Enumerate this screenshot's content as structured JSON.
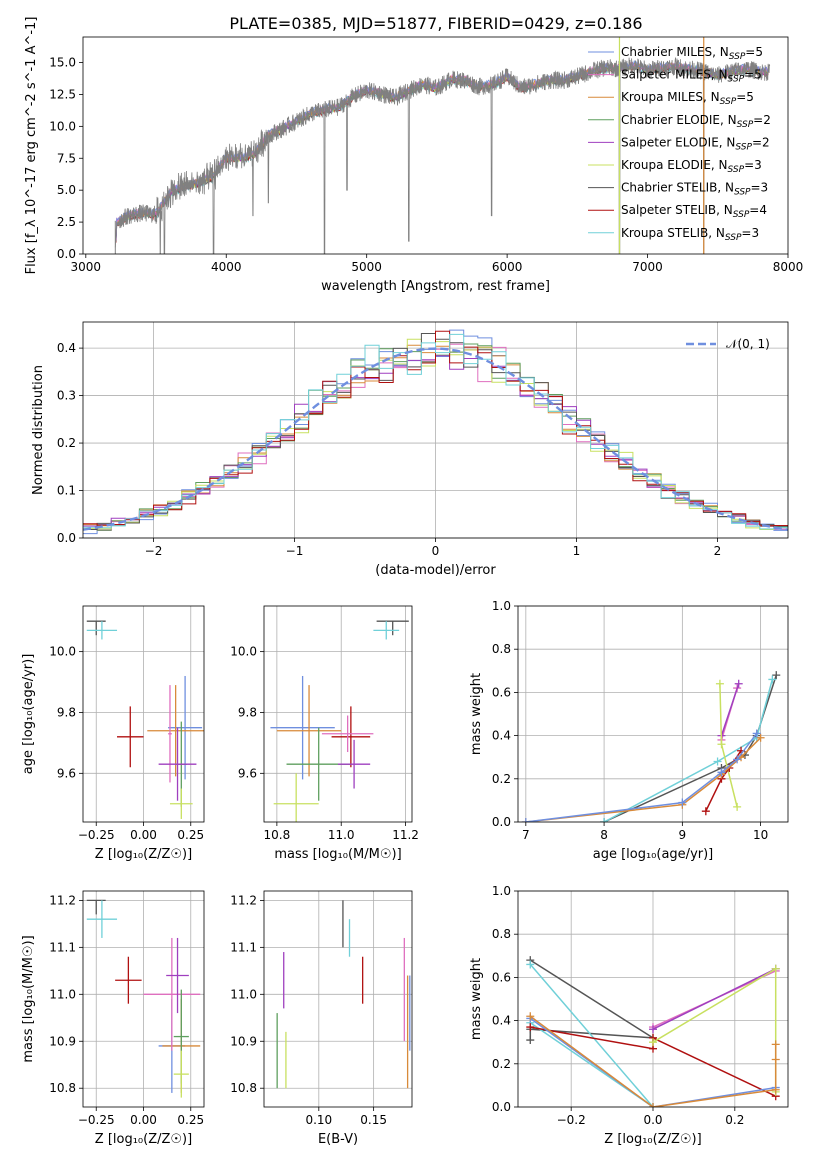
{
  "figure": {
    "title": "PLATE=0385, MJD=51877, FIBERID=0429, z=0.186"
  },
  "colors": {
    "chabrier_miles": "#6f8fdf",
    "salpeter_miles": "#df6fbf",
    "kroupa_miles": "#d88a3a",
    "chabrier_elodie": "#5f9f5f",
    "salpeter_elodie": "#9f3fbf",
    "kroupa_elodie": "#c8e060",
    "chabrier_stelib": "#555555",
    "salpeter_stelib": "#b01010",
    "kroupa_stelib": "#70d0d8",
    "normal_curve": "#6f8fdf",
    "grid": "#b0b0b0",
    "spectrum": "#808080"
  },
  "chart_data": [
    {
      "id": "spectrum",
      "type": "line",
      "xlabel": "wavelength [Angstrom, rest frame]",
      "ylabel": "Flux [f_λ 10^-17 erg cm^-2 s^-1 A^-1]",
      "xlim": [
        2980,
        8000
      ],
      "ylim": [
        0,
        17
      ],
      "xticks": [
        "3000",
        "4000",
        "5000",
        "6000",
        "7000",
        "8000"
      ],
      "yticks": [
        "0.0",
        "2.5",
        "5.0",
        "7.5",
        "10.0",
        "12.5",
        "15.0"
      ],
      "grid": false,
      "legend_position": "top-right",
      "legend": [
        {
          "main": "Chabrier MILES, N",
          "sub": "SSP",
          "tail": "=5",
          "color_key": "chabrier_miles"
        },
        {
          "main": "Salpeter MILES, N",
          "sub": "SSP",
          "tail": "=5",
          "color_key": "salpeter_miles"
        },
        {
          "main": "Kroupa MILES, N",
          "sub": "SSP",
          "tail": "=5",
          "color_key": "kroupa_miles"
        },
        {
          "main": "Chabrier ELODIE, N",
          "sub": "SSP",
          "tail": "=2",
          "color_key": "chabrier_elodie"
        },
        {
          "main": "Salpeter ELODIE, N",
          "sub": "SSP",
          "tail": "=2",
          "color_key": "salpeter_elodie"
        },
        {
          "main": "Kroupa ELODIE, N",
          "sub": "SSP",
          "tail": "=3",
          "color_key": "kroupa_elodie"
        },
        {
          "main": "Chabrier STELIB, N",
          "sub": "SSP",
          "tail": "=3",
          "color_key": "chabrier_stelib"
        },
        {
          "main": "Salpeter STELIB, N",
          "sub": "SSP",
          "tail": "=4",
          "color_key": "salpeter_stelib"
        },
        {
          "main": "Kroupa STELIB, N",
          "sub": "SSP",
          "tail": "=3",
          "color_key": "kroupa_stelib"
        }
      ],
      "envelope": [
        [
          3210,
          0
        ],
        [
          3220,
          2.5
        ],
        [
          3300,
          3.0
        ],
        [
          3400,
          3.2
        ],
        [
          3500,
          3.1
        ],
        [
          3600,
          4.8
        ],
        [
          3700,
          5.3
        ],
        [
          3800,
          5.6
        ],
        [
          3900,
          6.0
        ],
        [
          4000,
          7.5
        ],
        [
          4100,
          7.5
        ],
        [
          4200,
          7.8
        ],
        [
          4300,
          9.3
        ],
        [
          4400,
          9.8
        ],
        [
          4500,
          10.4
        ],
        [
          4600,
          11.0
        ],
        [
          4700,
          11.3
        ],
        [
          4800,
          11.5
        ],
        [
          4900,
          12.3
        ],
        [
          5000,
          12.8
        ],
        [
          5100,
          12.6
        ],
        [
          5200,
          12.2
        ],
        [
          5300,
          12.8
        ],
        [
          5400,
          13.3
        ],
        [
          5500,
          13.0
        ],
        [
          5600,
          13.7
        ],
        [
          5700,
          13.6
        ],
        [
          5800,
          13.1
        ],
        [
          5900,
          13.3
        ],
        [
          6000,
          13.9
        ],
        [
          6100,
          13.0
        ],
        [
          6200,
          13.3
        ],
        [
          6300,
          13.6
        ],
        [
          6400,
          13.6
        ],
        [
          6500,
          13.9
        ],
        [
          6600,
          14.3
        ],
        [
          6700,
          14.6
        ],
        [
          6800,
          14.5
        ],
        [
          6900,
          14.8
        ],
        [
          7000,
          14.4
        ],
        [
          7100,
          14.6
        ],
        [
          7200,
          14.7
        ],
        [
          7300,
          14.5
        ],
        [
          7400,
          14.3
        ],
        [
          7500,
          14.0
        ],
        [
          7600,
          14.3
        ],
        [
          7700,
          14.5
        ],
        [
          7800,
          14.3
        ],
        [
          7870,
          14.2
        ]
      ],
      "absorption_spikes": [
        [
          3530,
          0
        ],
        [
          3560,
          0
        ],
        [
          3910,
          0
        ],
        [
          4700,
          0
        ],
        [
          5300,
          1
        ],
        [
          4190,
          3
        ],
        [
          4300,
          4
        ],
        [
          4860,
          5
        ],
        [
          5890,
          3
        ],
        [
          6800,
          0
        ],
        [
          7400,
          0
        ]
      ]
    },
    {
      "id": "residuals",
      "type": "step",
      "xlabel": "(data-model)/error",
      "ylabel": "Normed distribution",
      "xlim": [
        -2.5,
        2.5
      ],
      "ylim": [
        0,
        0.455
      ],
      "xticks": [
        "−2",
        "−1",
        "0",
        "1",
        "2"
      ],
      "yticks": [
        "0.0",
        "0.1",
        "0.2",
        "0.3",
        "0.4"
      ],
      "grid": true,
      "legend_position": "top-right",
      "legend_label": "𝒩(0, 1)",
      "bin_width": 0.1,
      "normal_mean": 0,
      "normal_sigma": 1
    },
    {
      "id": "age_vs_z",
      "type": "scatter",
      "xlabel": "Z [log₁₀(Z/Z☉)]",
      "ylabel": "age  [log₁₀(age/yr)]",
      "xlim": [
        -0.32,
        0.32
      ],
      "ylim": [
        9.44,
        10.15
      ],
      "xticks": [
        "−0.25",
        "0.00",
        "0.25"
      ],
      "yticks": [
        "9.6",
        "9.8",
        "10.0"
      ],
      "grid": true,
      "points": [
        {
          "c": "chabrier_stelib",
          "x": -0.25,
          "xe": 0.05,
          "y": 10.1,
          "ye": 0
        },
        {
          "c": "kroupa_stelib",
          "x": -0.22,
          "xe": 0.08,
          "y": 10.07,
          "ye": 0.03
        },
        {
          "c": "salpeter_stelib",
          "x": -0.07,
          "xe": 0.07,
          "y": 9.72,
          "ye": 0.1
        },
        {
          "c": "chabrier_miles",
          "x": 0.22,
          "xe": 0.09,
          "y": 9.75,
          "ye": 0.17
        },
        {
          "c": "kroupa_miles",
          "x": 0.17,
          "xe": 0.15,
          "y": 9.74,
          "ye": 0.15
        },
        {
          "c": "salpeter_miles",
          "x": 0.14,
          "xe": 0.01,
          "y": 9.73,
          "ye": 0.16
        },
        {
          "c": "chabrier_elodie",
          "x": 0.2,
          "xe": 0.03,
          "y": 9.63,
          "ye": 0.14
        },
        {
          "c": "salpeter_elodie",
          "x": 0.18,
          "xe": 0.1,
          "y": 9.63,
          "ye": 0.12
        },
        {
          "c": "kroupa_elodie",
          "x": 0.2,
          "xe": 0.06,
          "y": 9.5,
          "ye": 0.05
        }
      ]
    },
    {
      "id": "age_vs_mass",
      "type": "scatter",
      "xlabel": "mass [log₁₀(M/M☉)]",
      "ylabel": "",
      "xlim": [
        10.76,
        11.22
      ],
      "ylim": [
        9.44,
        10.15
      ],
      "xticks": [
        "10.8",
        "11.0",
        "11.2"
      ],
      "yticks": [
        "9.6",
        "9.8",
        "10.0"
      ],
      "grid": true,
      "points": [
        {
          "c": "chabrier_stelib",
          "x": 11.16,
          "xe": 0.05,
          "y": 10.1,
          "ye": 0
        },
        {
          "c": "kroupa_stelib",
          "x": 11.14,
          "xe": 0.04,
          "y": 10.07,
          "ye": 0.03
        },
        {
          "c": "salpeter_stelib",
          "x": 11.03,
          "xe": 0.06,
          "y": 9.72,
          "ye": 0.1
        },
        {
          "c": "chabrier_miles",
          "x": 10.88,
          "xe": 0.1,
          "y": 9.75,
          "ye": 0.17
        },
        {
          "c": "kroupa_miles",
          "x": 10.9,
          "xe": 0.1,
          "y": 9.74,
          "ye": 0.15
        },
        {
          "c": "salpeter_miles",
          "x": 11.02,
          "xe": 0.08,
          "y": 9.73,
          "ye": 0.06
        },
        {
          "c": "chabrier_elodie",
          "x": 10.93,
          "xe": 0.1,
          "y": 9.63,
          "ye": 0.12
        },
        {
          "c": "salpeter_elodie",
          "x": 11.04,
          "xe": 0.05,
          "y": 9.63,
          "ye": 0.08
        },
        {
          "c": "kroupa_elodie",
          "x": 10.86,
          "xe": 0.07,
          "y": 9.5,
          "ye": 0.1
        }
      ]
    },
    {
      "id": "mass_weight_vs_age",
      "type": "line",
      "xlabel": "age  [log₁₀(age/yr)]",
      "ylabel": "mass weight",
      "xlim": [
        6.9,
        10.35
      ],
      "ylim": [
        0,
        1
      ],
      "xticks": [
        "7",
        "8",
        "9",
        "10"
      ],
      "yticks": [
        "0.0",
        "0.2",
        "0.4",
        "0.6",
        "0.8",
        "1.0"
      ],
      "grid": true,
      "series": [
        {
          "c": "chabrier_stelib",
          "points": [
            [
              8.0,
              0.0
            ],
            [
              9.5,
              0.25
            ],
            [
              9.8,
              0.31
            ],
            [
              9.95,
              0.4
            ],
            [
              10.2,
              0.68
            ]
          ]
        },
        {
          "c": "kroupa_stelib",
          "points": [
            [
              8.0,
              0.0
            ],
            [
              9.45,
              0.28
            ],
            [
              9.95,
              0.39
            ],
            [
              10.15,
              0.66
            ]
          ]
        },
        {
          "c": "salpeter_miles",
          "points": [
            [
              9.5,
              0.38
            ],
            [
              9.7,
              0.62
            ]
          ]
        },
        {
          "c": "salpeter_elodie",
          "points": [
            [
              9.5,
              0.4
            ],
            [
              9.72,
              0.64
            ]
          ]
        },
        {
          "c": "kroupa_elodie",
          "points": [
            [
              9.48,
              0.64
            ],
            [
              9.5,
              0.36
            ],
            [
              9.7,
              0.07
            ]
          ]
        },
        {
          "c": "salpeter_stelib",
          "points": [
            [
              9.3,
              0.05
            ],
            [
              9.5,
              0.2
            ],
            [
              9.6,
              0.25
            ],
            [
              9.75,
              0.33
            ]
          ]
        },
        {
          "c": "kroupa_miles",
          "points": [
            [
              7.0,
              0.0
            ],
            [
              9.0,
              0.08
            ],
            [
              9.5,
              0.22
            ],
            [
              9.75,
              0.3
            ],
            [
              10.0,
              0.39
            ]
          ]
        },
        {
          "c": "chabrier_miles",
          "points": [
            [
              7.0,
              0.0
            ],
            [
              9.0,
              0.09
            ],
            [
              9.5,
              0.23
            ],
            [
              9.7,
              0.29
            ],
            [
              9.95,
              0.41
            ]
          ]
        }
      ]
    },
    {
      "id": "mass_vs_z",
      "type": "scatter",
      "xlabel": "Z [log₁₀(Z/Z☉)]",
      "ylabel": "mass [log₁₀(M/M☉)]",
      "xlim": [
        -0.32,
        0.32
      ],
      "ylim": [
        10.76,
        11.22
      ],
      "xticks": [
        "−0.25",
        "0.00",
        "0.25"
      ],
      "yticks": [
        "10.8",
        "10.9",
        "11.0",
        "11.1",
        "11.2"
      ],
      "grid": true,
      "points": [
        {
          "c": "chabrier_stelib",
          "x": -0.25,
          "xe": 0.05,
          "y": 11.2,
          "ye": 0
        },
        {
          "c": "kroupa_stelib",
          "x": -0.22,
          "xe": 0.08,
          "y": 11.16,
          "ye": 0.04
        },
        {
          "c": "salpeter_stelib",
          "x": -0.08,
          "xe": 0.07,
          "y": 11.03,
          "ye": 0.05
        },
        {
          "c": "chabrier_miles",
          "x": 0.15,
          "xe": 0.07,
          "y": 10.89,
          "ye": 0.1
        },
        {
          "c": "kroupa_miles",
          "x": 0.2,
          "xe": 0.1,
          "y": 10.89,
          "ye": 0.1
        },
        {
          "c": "salpeter_miles",
          "x": 0.15,
          "xe": 0.15,
          "y": 11.0,
          "ye": 0.12
        },
        {
          "c": "chabrier_elodie",
          "x": 0.2,
          "xe": 0.04,
          "y": 10.91,
          "ye": 0.1
        },
        {
          "c": "salpeter_elodie",
          "x": 0.18,
          "xe": 0.06,
          "y": 11.04,
          "ye": 0.08
        },
        {
          "c": "kroupa_elodie",
          "x": 0.2,
          "xe": 0.04,
          "y": 10.83,
          "ye": 0.05
        }
      ]
    },
    {
      "id": "mass_vs_ebv",
      "type": "scatter",
      "xlabel": "E(B-V)",
      "ylabel": "",
      "xlim": [
        0.05,
        0.185
      ],
      "ylim": [
        10.76,
        11.22
      ],
      "xticks": [
        "0.10",
        "0.15"
      ],
      "yticks": [
        "10.8",
        "10.9",
        "11.0",
        "11.1",
        "11.2"
      ],
      "grid": true,
      "points": [
        {
          "c": "chabrier_elodie",
          "x": 0.062,
          "xe": 0,
          "y": 10.88,
          "ye": 0.08
        },
        {
          "c": "salpeter_elodie",
          "x": 0.068,
          "xe": 0,
          "y": 11.03,
          "ye": 0.06
        },
        {
          "c": "kroupa_elodie",
          "x": 0.07,
          "xe": 0,
          "y": 10.86,
          "ye": 0.06
        },
        {
          "c": "chabrier_stelib",
          "x": 0.122,
          "xe": 0,
          "y": 11.15,
          "ye": 0.05
        },
        {
          "c": "kroupa_stelib",
          "x": 0.128,
          "xe": 0,
          "y": 11.12,
          "ye": 0.04
        },
        {
          "c": "salpeter_stelib",
          "x": 0.14,
          "xe": 0,
          "y": 11.03,
          "ye": 0.05
        },
        {
          "c": "salpeter_miles",
          "x": 0.178,
          "xe": 0,
          "y": 11.01,
          "ye": 0.11
        },
        {
          "c": "kroupa_miles",
          "x": 0.181,
          "xe": 0,
          "y": 10.92,
          "ye": 0.12
        },
        {
          "c": "chabrier_miles",
          "x": 0.183,
          "xe": 0,
          "y": 10.96,
          "ye": 0.08
        }
      ]
    },
    {
      "id": "mass_weight_vs_z",
      "type": "line",
      "xlabel": "Z [log₁₀(Z/Z☉)]",
      "ylabel": "mass weight",
      "xlim": [
        -0.33,
        0.33
      ],
      "ylim": [
        0,
        1
      ],
      "xticks": [
        "−0.2",
        "0.0",
        "0.2"
      ],
      "yticks": [
        "0.0",
        "0.2",
        "0.4",
        "0.6",
        "0.8",
        "1.0"
      ],
      "grid": true,
      "series": [
        {
          "c": "chabrier_stelib",
          "points": [
            [
              -0.3,
              0.68
            ],
            [
              0.0,
              0.32
            ],
            [
              -0.3,
              0.36
            ],
            [
              -0.3,
              0.31
            ]
          ]
        },
        {
          "c": "kroupa_stelib",
          "points": [
            [
              -0.3,
              0.66
            ],
            [
              0.0,
              0.0
            ],
            [
              -0.3,
              0.39
            ]
          ]
        },
        {
          "c": "salpeter_stelib",
          "points": [
            [
              -0.3,
              0.37
            ],
            [
              0.0,
              0.27
            ],
            [
              0.0,
              0.32
            ],
            [
              0.3,
              0.05
            ]
          ]
        },
        {
          "c": "salpeter_miles",
          "points": [
            [
              0.0,
              0.37
            ],
            [
              0.3,
              0.63
            ]
          ]
        },
        {
          "c": "salpeter_elodie",
          "points": [
            [
              0.0,
              0.36
            ],
            [
              0.3,
              0.64
            ]
          ]
        },
        {
          "c": "kroupa_elodie",
          "points": [
            [
              0.0,
              0.3
            ],
            [
              0.3,
              0.64
            ],
            [
              0.3,
              0.07
            ]
          ]
        },
        {
          "c": "chabrier_miles",
          "points": [
            [
              -0.3,
              0.41
            ],
            [
              0.0,
              0.0
            ],
            [
              0.3,
              0.09
            ]
          ]
        },
        {
          "c": "kroupa_miles",
          "points": [
            [
              -0.3,
              0.42
            ],
            [
              0.0,
              0.0
            ],
            [
              0.3,
              0.08
            ],
            [
              0.3,
              0.22
            ],
            [
              0.3,
              0.29
            ]
          ]
        }
      ]
    }
  ]
}
